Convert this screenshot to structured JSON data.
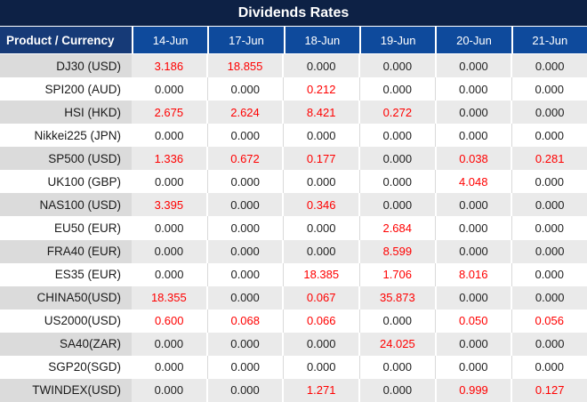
{
  "title": "Dividends Rates",
  "colors": {
    "title_bg": "#0d2145",
    "product_header_bg": "#163a77",
    "date_header_bg": "#0e4a9c",
    "header_text": "#ffffff",
    "value_text": "#1f1f1f",
    "highlight_red": "#ff0000",
    "stripe_label_bg": "#dbdbdb",
    "stripe_value_bg": "#eaeaea",
    "white_row_bg": "#ffffff"
  },
  "chart_data": {
    "type": "table",
    "title": "Dividends Rates",
    "product_header": "Product / Currency",
    "date_headers": [
      "14-Jun",
      "17-Jun",
      "18-Jun",
      "19-Jun",
      "20-Jun",
      "21-Jun"
    ],
    "rows": [
      {
        "label": "DJ30 (USD)",
        "values": [
          {
            "text": "3.186",
            "red": true
          },
          {
            "text": "18.855",
            "red": true
          },
          {
            "text": "0.000",
            "red": false
          },
          {
            "text": "0.000",
            "red": false
          },
          {
            "text": "0.000",
            "red": false
          },
          {
            "text": "0.000",
            "red": false
          }
        ]
      },
      {
        "label": "SPI200 (AUD)",
        "values": [
          {
            "text": "0.000",
            "red": false
          },
          {
            "text": "0.000",
            "red": false
          },
          {
            "text": "0.212",
            "red": true
          },
          {
            "text": "0.000",
            "red": false
          },
          {
            "text": "0.000",
            "red": false
          },
          {
            "text": "0.000",
            "red": false
          }
        ]
      },
      {
        "label": "HSI (HKD)",
        "values": [
          {
            "text": "2.675",
            "red": true
          },
          {
            "text": "2.624",
            "red": true
          },
          {
            "text": "8.421",
            "red": true
          },
          {
            "text": "0.272",
            "red": true
          },
          {
            "text": "0.000",
            "red": false
          },
          {
            "text": "0.000",
            "red": false
          }
        ]
      },
      {
        "label": "Nikkei225 (JPN)",
        "values": [
          {
            "text": "0.000",
            "red": false
          },
          {
            "text": "0.000",
            "red": false
          },
          {
            "text": "0.000",
            "red": false
          },
          {
            "text": "0.000",
            "red": false
          },
          {
            "text": "0.000",
            "red": false
          },
          {
            "text": "0.000",
            "red": false
          }
        ]
      },
      {
        "label": "SP500 (USD)",
        "values": [
          {
            "text": "1.336",
            "red": true
          },
          {
            "text": "0.672",
            "red": true
          },
          {
            "text": "0.177",
            "red": true
          },
          {
            "text": "0.000",
            "red": false
          },
          {
            "text": "0.038",
            "red": true
          },
          {
            "text": "0.281",
            "red": true
          }
        ]
      },
      {
        "label": "UK100 (GBP)",
        "values": [
          {
            "text": "0.000",
            "red": false
          },
          {
            "text": "0.000",
            "red": false
          },
          {
            "text": "0.000",
            "red": false
          },
          {
            "text": "0.000",
            "red": false
          },
          {
            "text": "4.048",
            "red": true
          },
          {
            "text": "0.000",
            "red": false
          }
        ]
      },
      {
        "label": "NAS100 (USD)",
        "values": [
          {
            "text": "3.395",
            "red": true
          },
          {
            "text": "0.000",
            "red": false
          },
          {
            "text": "0.346",
            "red": true
          },
          {
            "text": "0.000",
            "red": false
          },
          {
            "text": "0.000",
            "red": false
          },
          {
            "text": "0.000",
            "red": false
          }
        ]
      },
      {
        "label": "EU50 (EUR)",
        "values": [
          {
            "text": "0.000",
            "red": false
          },
          {
            "text": "0.000",
            "red": false
          },
          {
            "text": "0.000",
            "red": false
          },
          {
            "text": "2.684",
            "red": true
          },
          {
            "text": "0.000",
            "red": false
          },
          {
            "text": "0.000",
            "red": false
          }
        ]
      },
      {
        "label": "FRA40 (EUR)",
        "values": [
          {
            "text": "0.000",
            "red": false
          },
          {
            "text": "0.000",
            "red": false
          },
          {
            "text": "0.000",
            "red": false
          },
          {
            "text": "8.599",
            "red": true
          },
          {
            "text": "0.000",
            "red": false
          },
          {
            "text": "0.000",
            "red": false
          }
        ]
      },
      {
        "label": "ES35 (EUR)",
        "values": [
          {
            "text": "0.000",
            "red": false
          },
          {
            "text": "0.000",
            "red": false
          },
          {
            "text": "18.385",
            "red": true
          },
          {
            "text": "1.706",
            "red": true
          },
          {
            "text": "8.016",
            "red": true
          },
          {
            "text": "0.000",
            "red": false
          }
        ]
      },
      {
        "label": "CHINA50(USD)",
        "values": [
          {
            "text": "18.355",
            "red": true
          },
          {
            "text": "0.000",
            "red": false
          },
          {
            "text": "0.067",
            "red": true
          },
          {
            "text": "35.873",
            "red": true
          },
          {
            "text": "0.000",
            "red": false
          },
          {
            "text": "0.000",
            "red": false
          }
        ]
      },
      {
        "label": "US2000(USD)",
        "values": [
          {
            "text": "0.600",
            "red": true
          },
          {
            "text": "0.068",
            "red": true
          },
          {
            "text": "0.066",
            "red": true
          },
          {
            "text": "0.000",
            "red": false
          },
          {
            "text": "0.050",
            "red": true
          },
          {
            "text": "0.056",
            "red": true
          }
        ]
      },
      {
        "label": "SA40(ZAR)",
        "values": [
          {
            "text": "0.000",
            "red": false
          },
          {
            "text": "0.000",
            "red": false
          },
          {
            "text": "0.000",
            "red": false
          },
          {
            "text": "24.025",
            "red": true
          },
          {
            "text": "0.000",
            "red": false
          },
          {
            "text": "0.000",
            "red": false
          }
        ]
      },
      {
        "label": "SGP20(SGD)",
        "values": [
          {
            "text": "0.000",
            "red": false
          },
          {
            "text": "0.000",
            "red": false
          },
          {
            "text": "0.000",
            "red": false
          },
          {
            "text": "0.000",
            "red": false
          },
          {
            "text": "0.000",
            "red": false
          },
          {
            "text": "0.000",
            "red": false
          }
        ]
      },
      {
        "label": "TWINDEX(USD)",
        "values": [
          {
            "text": "0.000",
            "red": false
          },
          {
            "text": "0.000",
            "red": false
          },
          {
            "text": "1.271",
            "red": true
          },
          {
            "text": "0.000",
            "red": false
          },
          {
            "text": "0.999",
            "red": true
          },
          {
            "text": "0.127",
            "red": true
          }
        ]
      }
    ]
  }
}
